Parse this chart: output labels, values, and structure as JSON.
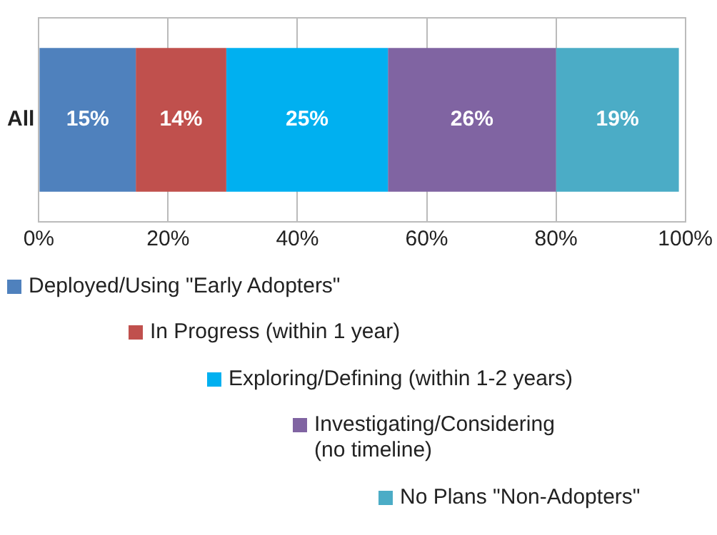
{
  "chart_data": {
    "type": "bar",
    "orientation": "horizontal",
    "stacked": true,
    "categories": [
      "All"
    ],
    "series": [
      {
        "name": "Deployed/Using \"Early Adopters\"",
        "color": "#4f81bd",
        "values": [
          15
        ],
        "value_labels": [
          "15%"
        ]
      },
      {
        "name": "In Progress (within 1 year)",
        "color": "#c0504d",
        "values": [
          14
        ],
        "value_labels": [
          "14%"
        ]
      },
      {
        "name": "Exploring/Defining (within 1-2 years)",
        "color": "#00b0f0",
        "values": [
          25
        ],
        "value_labels": [
          "25%"
        ]
      },
      {
        "name": "Investigating/Considering (no timeline)",
        "color": "#8064a2",
        "values": [
          26
        ],
        "value_labels": [
          "26%"
        ]
      },
      {
        "name": "No Plans \"Non-Adopters\"",
        "color": "#4bacc6",
        "values": [
          19
        ],
        "value_labels": [
          "19%"
        ]
      }
    ],
    "xlim": [
      0,
      100
    ],
    "xticks": [
      {
        "value": 0,
        "label": "0%"
      },
      {
        "value": 20,
        "label": "20%"
      },
      {
        "value": 40,
        "label": "40%"
      },
      {
        "value": 60,
        "label": "60%"
      },
      {
        "value": 80,
        "label": "80%"
      },
      {
        "value": 100,
        "label": "100%"
      }
    ],
    "grid": "x",
    "legend": "bottom"
  }
}
